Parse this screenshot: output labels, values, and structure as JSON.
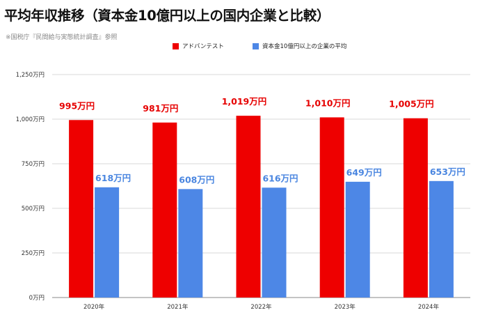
{
  "title": "平均年収推移（資本金10億円以上の国内企業と比較）",
  "source": "※国税庁『民間給与実態統計調査』参照",
  "legend": [
    {
      "label": "アドバンテスト",
      "color": "#ee0000"
    },
    {
      "label": "資本金10億円以上の企業の平均",
      "color": "#4d87e6"
    }
  ],
  "chart_data": {
    "type": "bar",
    "title": "平均年収推移（資本金10億円以上の国内企業と比較）",
    "categories": [
      "2020年",
      "2021年",
      "2022年",
      "2023年",
      "2024年"
    ],
    "series": [
      {
        "name": "アドバンテスト",
        "color": "#ee0000",
        "label_color": "#e60000",
        "values": [
          995,
          981,
          1019,
          1010,
          1005
        ],
        "labels": [
          "995万円",
          "981万円",
          "1,019万円",
          "1,010万円",
          "1,005万円"
        ]
      },
      {
        "name": "資本金10億円以上の企業の平均",
        "color": "#4d87e6",
        "label_color": "#4a86e0",
        "values": [
          618,
          608,
          616,
          649,
          653
        ],
        "labels": [
          "618万円",
          "608万円",
          "616万円",
          "649万円",
          "653万円"
        ]
      }
    ],
    "ylim": [
      0,
      1250
    ],
    "yticks": [
      0,
      250,
      500,
      750,
      1000,
      1250
    ],
    "ytick_labels": [
      "0万円",
      "250万円",
      "500万円",
      "750万円",
      "1,000万円",
      "1,250万円"
    ],
    "grid": true,
    "legend_position": "top-center"
  }
}
